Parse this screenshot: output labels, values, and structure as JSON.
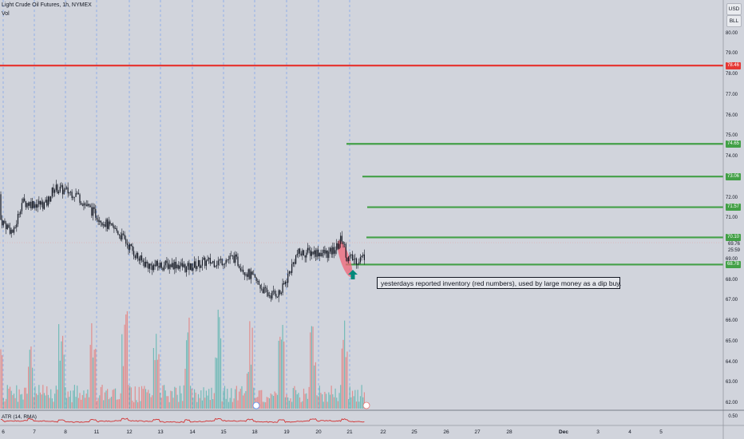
{
  "header": {
    "title": "Light Crude Oil Futures, 1h, NYMEX",
    "vol_label": "Vol",
    "atr_label": "ATR (14, RMA)"
  },
  "scale_units": [
    "USD",
    "BLL"
  ],
  "annotation": "yesterdays reported inventory (red numbers), used by large money as a dip buy.",
  "colors": {
    "background": "#d1d4dc",
    "resistance": "#e53935",
    "support": "#43a047",
    "candle": "#131722",
    "volume_up": "#26a69a",
    "volume_down": "#ef5350",
    "atr": "#d32f2f",
    "highlight": "#f06477",
    "arrow": "#00897b",
    "grid_dash": "#5b8ef2"
  },
  "chart_data": {
    "type": "candlestick",
    "y_axis": {
      "min": 62.0,
      "max": 80.0,
      "ticks": [
        "80.00",
        "79.00",
        "78.00",
        "77.00",
        "76.00",
        "75.00",
        "74.00",
        "73.00",
        "72.00",
        "71.00",
        "69.00",
        "68.00",
        "67.00",
        "66.00",
        "65.00",
        "64.00",
        "63.00",
        "62.00"
      ]
    },
    "x_axis": {
      "ticks": [
        "6",
        "7",
        "8",
        "11",
        "12",
        "13",
        "14",
        "15",
        "18",
        "19",
        "20",
        "21",
        "22",
        "25",
        "26",
        "27",
        "28",
        "Dec",
        "3",
        "4",
        "5"
      ]
    },
    "atr_axis": {
      "ticks": [
        "0.50"
      ]
    },
    "horizontal_levels": [
      {
        "value": 78.46,
        "label": "78.46",
        "color": "#e53935"
      },
      {
        "value": 74.65,
        "label": "74.65",
        "color": "#43a047"
      },
      {
        "value": 73.06,
        "label": "73.06",
        "color": "#43a047"
      },
      {
        "value": 71.57,
        "label": "71.57",
        "color": "#43a047"
      },
      {
        "value": 70.1,
        "label": "70.10",
        "color": "#43a047"
      },
      {
        "value": 68.78,
        "label": "68.78",
        "color": "#43a047"
      }
    ],
    "last_price": "69.76",
    "countdown": "25:59",
    "price_path": [
      [
        "11/05 09:00",
        72.2
      ],
      [
        "11/05 14:00",
        71.3
      ],
      [
        "11/06 08:00",
        70.3
      ],
      [
        "11/06 14:00",
        71.8
      ],
      [
        "11/07 09:00",
        71.7
      ],
      [
        "11/07 15:00",
        72.5
      ],
      [
        "11/08 09:00",
        72.2
      ],
      [
        "11/08 12:00",
        71.9
      ],
      [
        "11/08 20:00",
        71.4
      ],
      [
        "11/11 10:00",
        70.6
      ],
      [
        "11/11 16:00",
        70.4
      ],
      [
        "11/12 08:00",
        69.0
      ],
      [
        "11/12 16:00",
        68.7
      ],
      [
        "11/13 12:00",
        68.8
      ],
      [
        "11/13 20:00",
        68.6
      ],
      [
        "11/14 10:00",
        68.9
      ],
      [
        "11/14 18:00",
        68.9
      ],
      [
        "11/15 08:00",
        69.1
      ],
      [
        "11/15 16:00",
        68.5
      ],
      [
        "11/18 02:00",
        67.9
      ],
      [
        "11/18 10:00",
        67.3
      ],
      [
        "11/18 20:00",
        67.4
      ],
      [
        "11/19 08:00",
        69.3
      ],
      [
        "11/19 20:00",
        69.4
      ],
      [
        "11/20 08:00",
        69.3
      ],
      [
        "11/20 14:00",
        69.6
      ],
      [
        "11/20 18:00",
        70.1
      ],
      [
        "11/20 22:00",
        69.1
      ],
      [
        "11/21 06:00",
        69.0
      ],
      [
        "11/21 14:00",
        69.3
      ],
      [
        "11/21 19:00",
        69.76
      ]
    ]
  },
  "events": {
    "icon_lightning": "lightning-icon",
    "icon_dividend": "earnings-icon"
  }
}
